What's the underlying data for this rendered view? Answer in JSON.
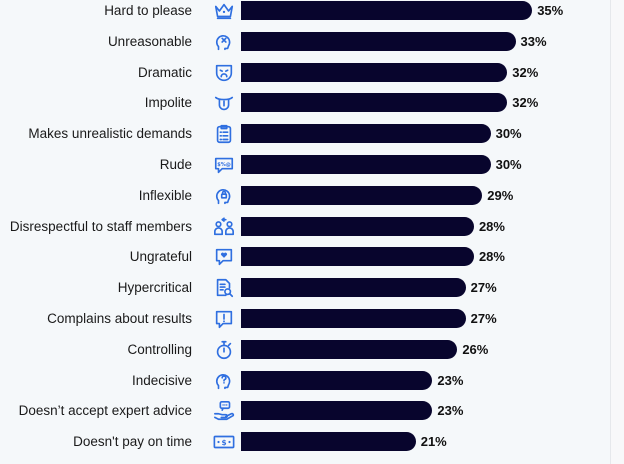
{
  "colors": {
    "background": "#f5f8fa",
    "bar": "#08052d",
    "icon": "#2f6fe0",
    "label": "#1a1a1a"
  },
  "chart_data": {
    "type": "bar",
    "orientation": "horizontal",
    "title": "",
    "xlabel": "",
    "ylabel": "",
    "unit": "%",
    "xlim": [
      0,
      35
    ],
    "grid": false,
    "legend": null,
    "categories": [
      "Hard to please",
      "Unreasonable",
      "Dramatic",
      "Impolite",
      "Makes unrealistic demands",
      "Rude",
      "Inflexible",
      "Disrespectful to staff members",
      "Ungrateful",
      "Hypercritical",
      "Complains about results",
      "Controlling",
      "Indecisive",
      "Doesn’t accept expert advice",
      "Doesn't pay on time"
    ],
    "values": [
      35,
      33,
      32,
      32,
      30,
      30,
      29,
      28,
      28,
      27,
      27,
      26,
      23,
      23,
      21
    ]
  },
  "rows": [
    {
      "label": "Hard to please",
      "value": 35,
      "value_label": "35%",
      "icon": "crown-icon"
    },
    {
      "label": "Unreasonable",
      "value": 33,
      "value_label": "33%",
      "icon": "head-x-icon"
    },
    {
      "label": "Dramatic",
      "value": 32,
      "value_label": "32%",
      "icon": "drama-mask-icon"
    },
    {
      "label": "Impolite",
      "value": 32,
      "value_label": "32%",
      "icon": "tongue-out-icon"
    },
    {
      "label": "Makes unrealistic demands",
      "value": 30,
      "value_label": "30%",
      "icon": "clipboard-list-icon"
    },
    {
      "label": "Rude",
      "value": 30,
      "value_label": "30%",
      "icon": "swear-bubble-icon"
    },
    {
      "label": "Inflexible",
      "value": 29,
      "value_label": "29%",
      "icon": "head-lock-icon"
    },
    {
      "label": "Disrespectful to staff members",
      "value": 28,
      "value_label": "28%",
      "icon": "people-exchange-icon"
    },
    {
      "label": "Ungrateful",
      "value": 28,
      "value_label": "28%",
      "icon": "heart-bubble-icon"
    },
    {
      "label": "Hypercritical",
      "value": 27,
      "value_label": "27%",
      "icon": "document-search-icon"
    },
    {
      "label": "Complains about results",
      "value": 27,
      "value_label": "27%",
      "icon": "exclamation-bubble-icon"
    },
    {
      "label": "Controlling",
      "value": 26,
      "value_label": "26%",
      "icon": "stopwatch-icon"
    },
    {
      "label": "Indecisive",
      "value": 23,
      "value_label": "23%",
      "icon": "head-question-icon"
    },
    {
      "label": "Doesn’t accept expert advice",
      "value": 23,
      "value_label": "23%",
      "icon": "hand-chat-icon"
    },
    {
      "label": "Doesn't pay on time",
      "value": 21,
      "value_label": "21%",
      "icon": "cash-icon"
    }
  ]
}
